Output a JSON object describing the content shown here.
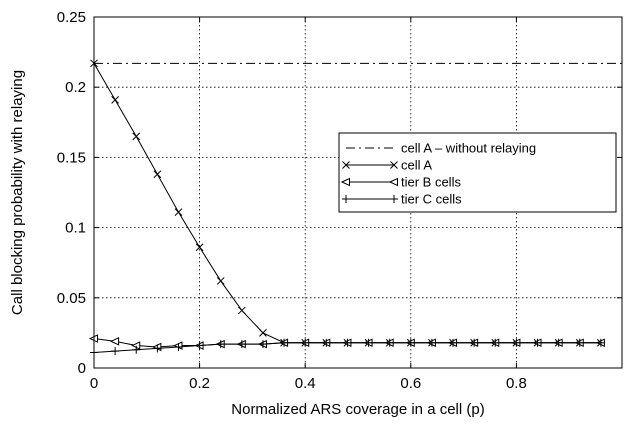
{
  "chart_data": {
    "type": "line",
    "xlabel": "Normalized ARS coverage in a cell (p)",
    "ylabel": "Call blocking probability with relaying",
    "xlim": [
      0,
      1
    ],
    "ylim": [
      0,
      0.25
    ],
    "xticks": [
      "0",
      "0.2",
      "0.4",
      "0.6",
      "0.8"
    ],
    "yticks": [
      "0",
      "0.05",
      "0.1",
      "0.15",
      "0.2",
      "0.25"
    ],
    "grid": true,
    "legend_position": "right",
    "series": [
      {
        "name": "cell A – without relaying",
        "style": "dash-dot",
        "marker": "none",
        "x": [
          0,
          1
        ],
        "y": [
          0.217,
          0.217
        ]
      },
      {
        "name": "cell A",
        "style": "solid",
        "marker": "x",
        "x": [
          0,
          0.04,
          0.08,
          0.12,
          0.16,
          0.2,
          0.24,
          0.28,
          0.32,
          0.36,
          0.4,
          0.44,
          0.48,
          0.52,
          0.56,
          0.6,
          0.64,
          0.68,
          0.72,
          0.76,
          0.8,
          0.84,
          0.88,
          0.92,
          0.96
        ],
        "y": [
          0.217,
          0.191,
          0.165,
          0.138,
          0.111,
          0.086,
          0.062,
          0.041,
          0.025,
          0.018,
          0.018,
          0.018,
          0.018,
          0.018,
          0.018,
          0.018,
          0.018,
          0.018,
          0.018,
          0.018,
          0.018,
          0.018,
          0.018,
          0.018,
          0.018
        ]
      },
      {
        "name": "tier B cells",
        "style": "solid",
        "marker": "triangle-left",
        "x": [
          0,
          0.04,
          0.08,
          0.12,
          0.16,
          0.2,
          0.24,
          0.28,
          0.32,
          0.36,
          0.4,
          0.44,
          0.48,
          0.52,
          0.56,
          0.6,
          0.64,
          0.68,
          0.72,
          0.76,
          0.8,
          0.84,
          0.88,
          0.92,
          0.96
        ],
        "y": [
          0.021,
          0.019,
          0.016,
          0.015,
          0.016,
          0.016,
          0.017,
          0.017,
          0.017,
          0.018,
          0.018,
          0.018,
          0.018,
          0.018,
          0.018,
          0.018,
          0.018,
          0.018,
          0.018,
          0.018,
          0.018,
          0.018,
          0.018,
          0.018,
          0.018
        ]
      },
      {
        "name": "tier C cells",
        "style": "solid",
        "marker": "plus",
        "x": [
          0,
          0.04,
          0.08,
          0.12,
          0.16,
          0.2,
          0.24,
          0.28,
          0.32,
          0.36,
          0.4,
          0.44,
          0.48,
          0.52,
          0.56,
          0.6,
          0.64,
          0.68,
          0.72,
          0.76,
          0.8,
          0.84,
          0.88,
          0.92,
          0.96
        ],
        "y": [
          0.011,
          0.012,
          0.013,
          0.014,
          0.015,
          0.016,
          0.017,
          0.017,
          0.017,
          0.018,
          0.018,
          0.018,
          0.018,
          0.018,
          0.018,
          0.018,
          0.018,
          0.018,
          0.018,
          0.018,
          0.018,
          0.018,
          0.018,
          0.018,
          0.018
        ]
      }
    ]
  }
}
